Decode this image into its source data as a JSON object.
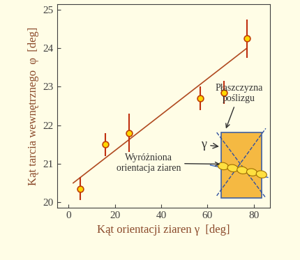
{
  "chart_data": {
    "type": "scatter",
    "x_label": "Kąt orientacji ziaren γ  [deg]",
    "y_label": "Kąt tarcia wewnętrznego  φ  [deg]",
    "xlim": [
      -5,
      87
    ],
    "ylim": [
      19.85,
      25.15
    ],
    "xticks": [
      0,
      20,
      40,
      60,
      80
    ],
    "yticks": [
      20,
      21,
      22,
      23,
      24,
      25
    ],
    "grid": false,
    "series": [
      {
        "type": "scatter",
        "color": "#ffd700",
        "marker": "circle",
        "x": [
          5,
          16,
          26,
          57,
          67,
          77
        ],
        "values": [
          20.35,
          21.5,
          21.8,
          22.7,
          22.85,
          24.25
        ],
        "errors": [
          0.3,
          0.3,
          0.5,
          0.3,
          0.3,
          0.5
        ]
      },
      {
        "type": "line",
        "color": "#b04a20",
        "line_style": "solid",
        "x": [
          2,
          77
        ],
        "values": [
          20.5,
          24.0
        ]
      }
    ],
    "annotations": [
      "Płaszczyzna\npoślizgu",
      "Wyróżniona\norientacja ziaren",
      "γ"
    ]
  }
}
